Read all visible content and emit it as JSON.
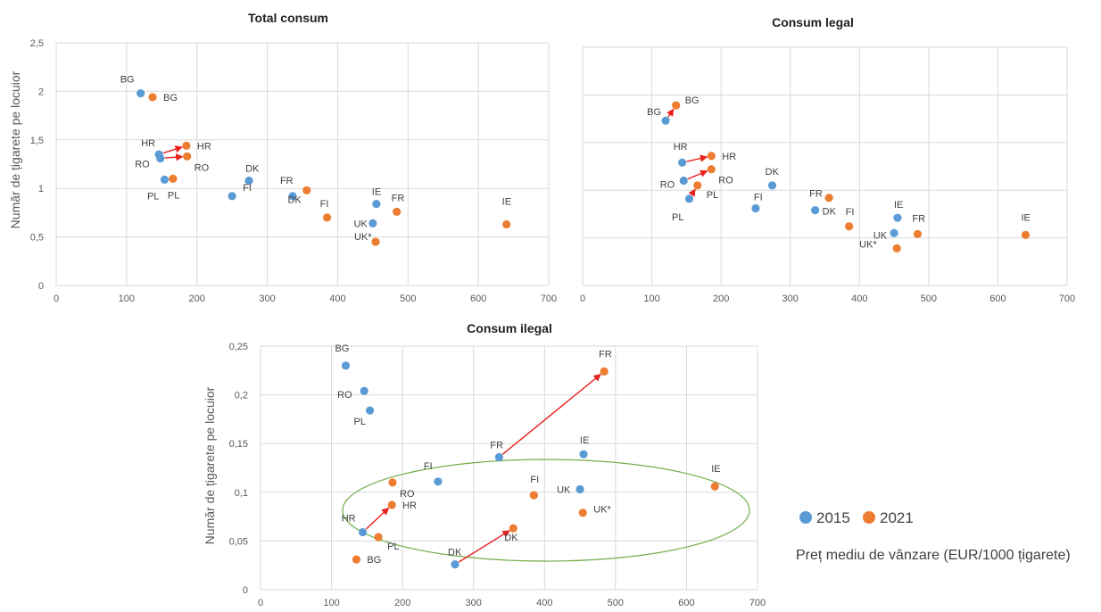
{
  "chart_data": [
    {
      "type": "scatter",
      "title": "Total consum",
      "ylabel": "Număr de țigarete pe locuior",
      "xlim": [
        0,
        700
      ],
      "ylim": [
        0,
        2.5
      ],
      "xticks": [
        "0",
        "100",
        "200",
        "300",
        "400",
        "500",
        "600",
        "700"
      ],
      "yticks": [
        "0",
        "0,5",
        "1",
        "1,5",
        "2",
        "2,5"
      ],
      "grid": true,
      "series": [
        {
          "name": "2015",
          "color": "#5b9bd5",
          "points": [
            {
              "label": "BG",
              "x": 120,
              "y": 1.98
            },
            {
              "label": "HR",
              "x": 146,
              "y": 1.35
            },
            {
              "label": "RO",
              "x": 148,
              "y": 1.31
            },
            {
              "label": "PL",
              "x": 154,
              "y": 1.09
            },
            {
              "label": "FI",
              "x": 250,
              "y": 0.92
            },
            {
              "label": "DK",
              "x": 274,
              "y": 1.08
            },
            {
              "label": "FR",
              "x": 336,
              "y": 0.92
            },
            {
              "label": "UK",
              "x": 450,
              "y": 0.64
            },
            {
              "label": "IE",
              "x": 455,
              "y": 0.84
            }
          ]
        },
        {
          "name": "2021",
          "color": "#ed7d31",
          "points": [
            {
              "label": "BG",
              "x": 137,
              "y": 1.94
            },
            {
              "label": "PL",
              "x": 166,
              "y": 1.1
            },
            {
              "label": "HR",
              "x": 185,
              "y": 1.44
            },
            {
              "label": "RO",
              "x": 186,
              "y": 1.33
            },
            {
              "label": "DK",
              "x": 356,
              "y": 0.98
            },
            {
              "label": "FI",
              "x": 385,
              "y": 0.7
            },
            {
              "label": "UK*",
              "x": 454,
              "y": 0.45
            },
            {
              "label": "FR",
              "x": 484,
              "y": 0.76
            },
            {
              "label": "IE",
              "x": 640,
              "y": 0.63
            }
          ]
        }
      ]
    },
    {
      "type": "scatter",
      "title": "Consum legal",
      "xlim": [
        0,
        700
      ],
      "ylim": [
        0,
        2.5
      ],
      "xticks": [
        "0",
        "100",
        "200",
        "300",
        "400",
        "500",
        "600",
        "700"
      ],
      "grid": true,
      "series": [
        {
          "name": "2015",
          "color": "#5b9bd5",
          "points": [
            {
              "label": "BG",
              "x": 120,
              "y": 1.73
            },
            {
              "label": "HR",
              "x": 144,
              "y": 1.29
            },
            {
              "label": "RO",
              "x": 146,
              "y": 1.1
            },
            {
              "label": "PL",
              "x": 154,
              "y": 0.91
            },
            {
              "label": "FI",
              "x": 250,
              "y": 0.81
            },
            {
              "label": "DK",
              "x": 274,
              "y": 1.05
            },
            {
              "label": "DK",
              "x": 336,
              "y": 0.79
            },
            {
              "label": "UK",
              "x": 450,
              "y": 0.55
            },
            {
              "label": "IE",
              "x": 455,
              "y": 0.71
            }
          ]
        },
        {
          "name": "2021",
          "color": "#ed7d31",
          "points": [
            {
              "label": "BG",
              "x": 135,
              "y": 1.89
            },
            {
              "label": "PL",
              "x": 166,
              "y": 1.05
            },
            {
              "label": "HR",
              "x": 186,
              "y": 1.36
            },
            {
              "label": "RO",
              "x": 186,
              "y": 1.22
            },
            {
              "label": "FR",
              "x": 356,
              "y": 0.92
            },
            {
              "label": "FI",
              "x": 385,
              "y": 0.62
            },
            {
              "label": "UK*",
              "x": 454,
              "y": 0.39
            },
            {
              "label": "FR",
              "x": 484,
              "y": 0.54
            },
            {
              "label": "IE",
              "x": 640,
              "y": 0.53
            }
          ]
        }
      ]
    },
    {
      "type": "scatter",
      "title": "Consum ilegal",
      "ylabel": "Număr de țigarete pe locuior",
      "xlim": [
        0,
        700
      ],
      "ylim": [
        0,
        0.25
      ],
      "xticks": [
        "0",
        "100",
        "200",
        "300",
        "400",
        "500",
        "600",
        "700"
      ],
      "yticks": [
        "0",
        "0,05",
        "0,1",
        "0,15",
        "0,2",
        "0,25"
      ],
      "grid": true,
      "series": [
        {
          "name": "2015",
          "color": "#5b9bd5",
          "points": [
            {
              "label": "BG",
              "x": 120,
              "y": 0.23
            },
            {
              "label": "RO",
              "x": 146,
              "y": 0.204
            },
            {
              "label": "PL",
              "x": 154,
              "y": 0.184
            },
            {
              "label": "HR",
              "x": 144,
              "y": 0.059
            },
            {
              "label": "FI",
              "x": 250,
              "y": 0.111
            },
            {
              "label": "DK",
              "x": 274,
              "y": 0.026
            },
            {
              "label": "FR",
              "x": 336,
              "y": 0.136
            },
            {
              "label": "UK",
              "x": 450,
              "y": 0.103
            },
            {
              "label": "IE",
              "x": 455,
              "y": 0.139
            }
          ]
        },
        {
          "name": "2021",
          "color": "#ed7d31",
          "points": [
            {
              "label": "BG",
              "x": 135,
              "y": 0.031
            },
            {
              "label": "PL",
              "x": 166,
              "y": 0.054
            },
            {
              "label": "RO",
              "x": 186,
              "y": 0.11
            },
            {
              "label": "HR",
              "x": 185,
              "y": 0.087
            },
            {
              "label": "DK",
              "x": 356,
              "y": 0.063
            },
            {
              "label": "FI",
              "x": 385,
              "y": 0.097
            },
            {
              "label": "UK*",
              "x": 454,
              "y": 0.079
            },
            {
              "label": "FR",
              "x": 484,
              "y": 0.224
            },
            {
              "label": "IE",
              "x": 640,
              "y": 0.106
            }
          ]
        }
      ]
    }
  ],
  "legend": {
    "items": [
      {
        "label": "2015",
        "color": "#5b9bd5"
      },
      {
        "label": "2021",
        "color": "#ed7d31"
      }
    ],
    "xlabel": "Preț mediu de vânzare (EUR/1000 țigarete)"
  },
  "colors": {
    "s2015": "#5b9bd5",
    "s2021": "#ed7d31",
    "arrow": "#e8211d",
    "ellipse": "#70ad47",
    "grid": "#d9d9d9"
  }
}
